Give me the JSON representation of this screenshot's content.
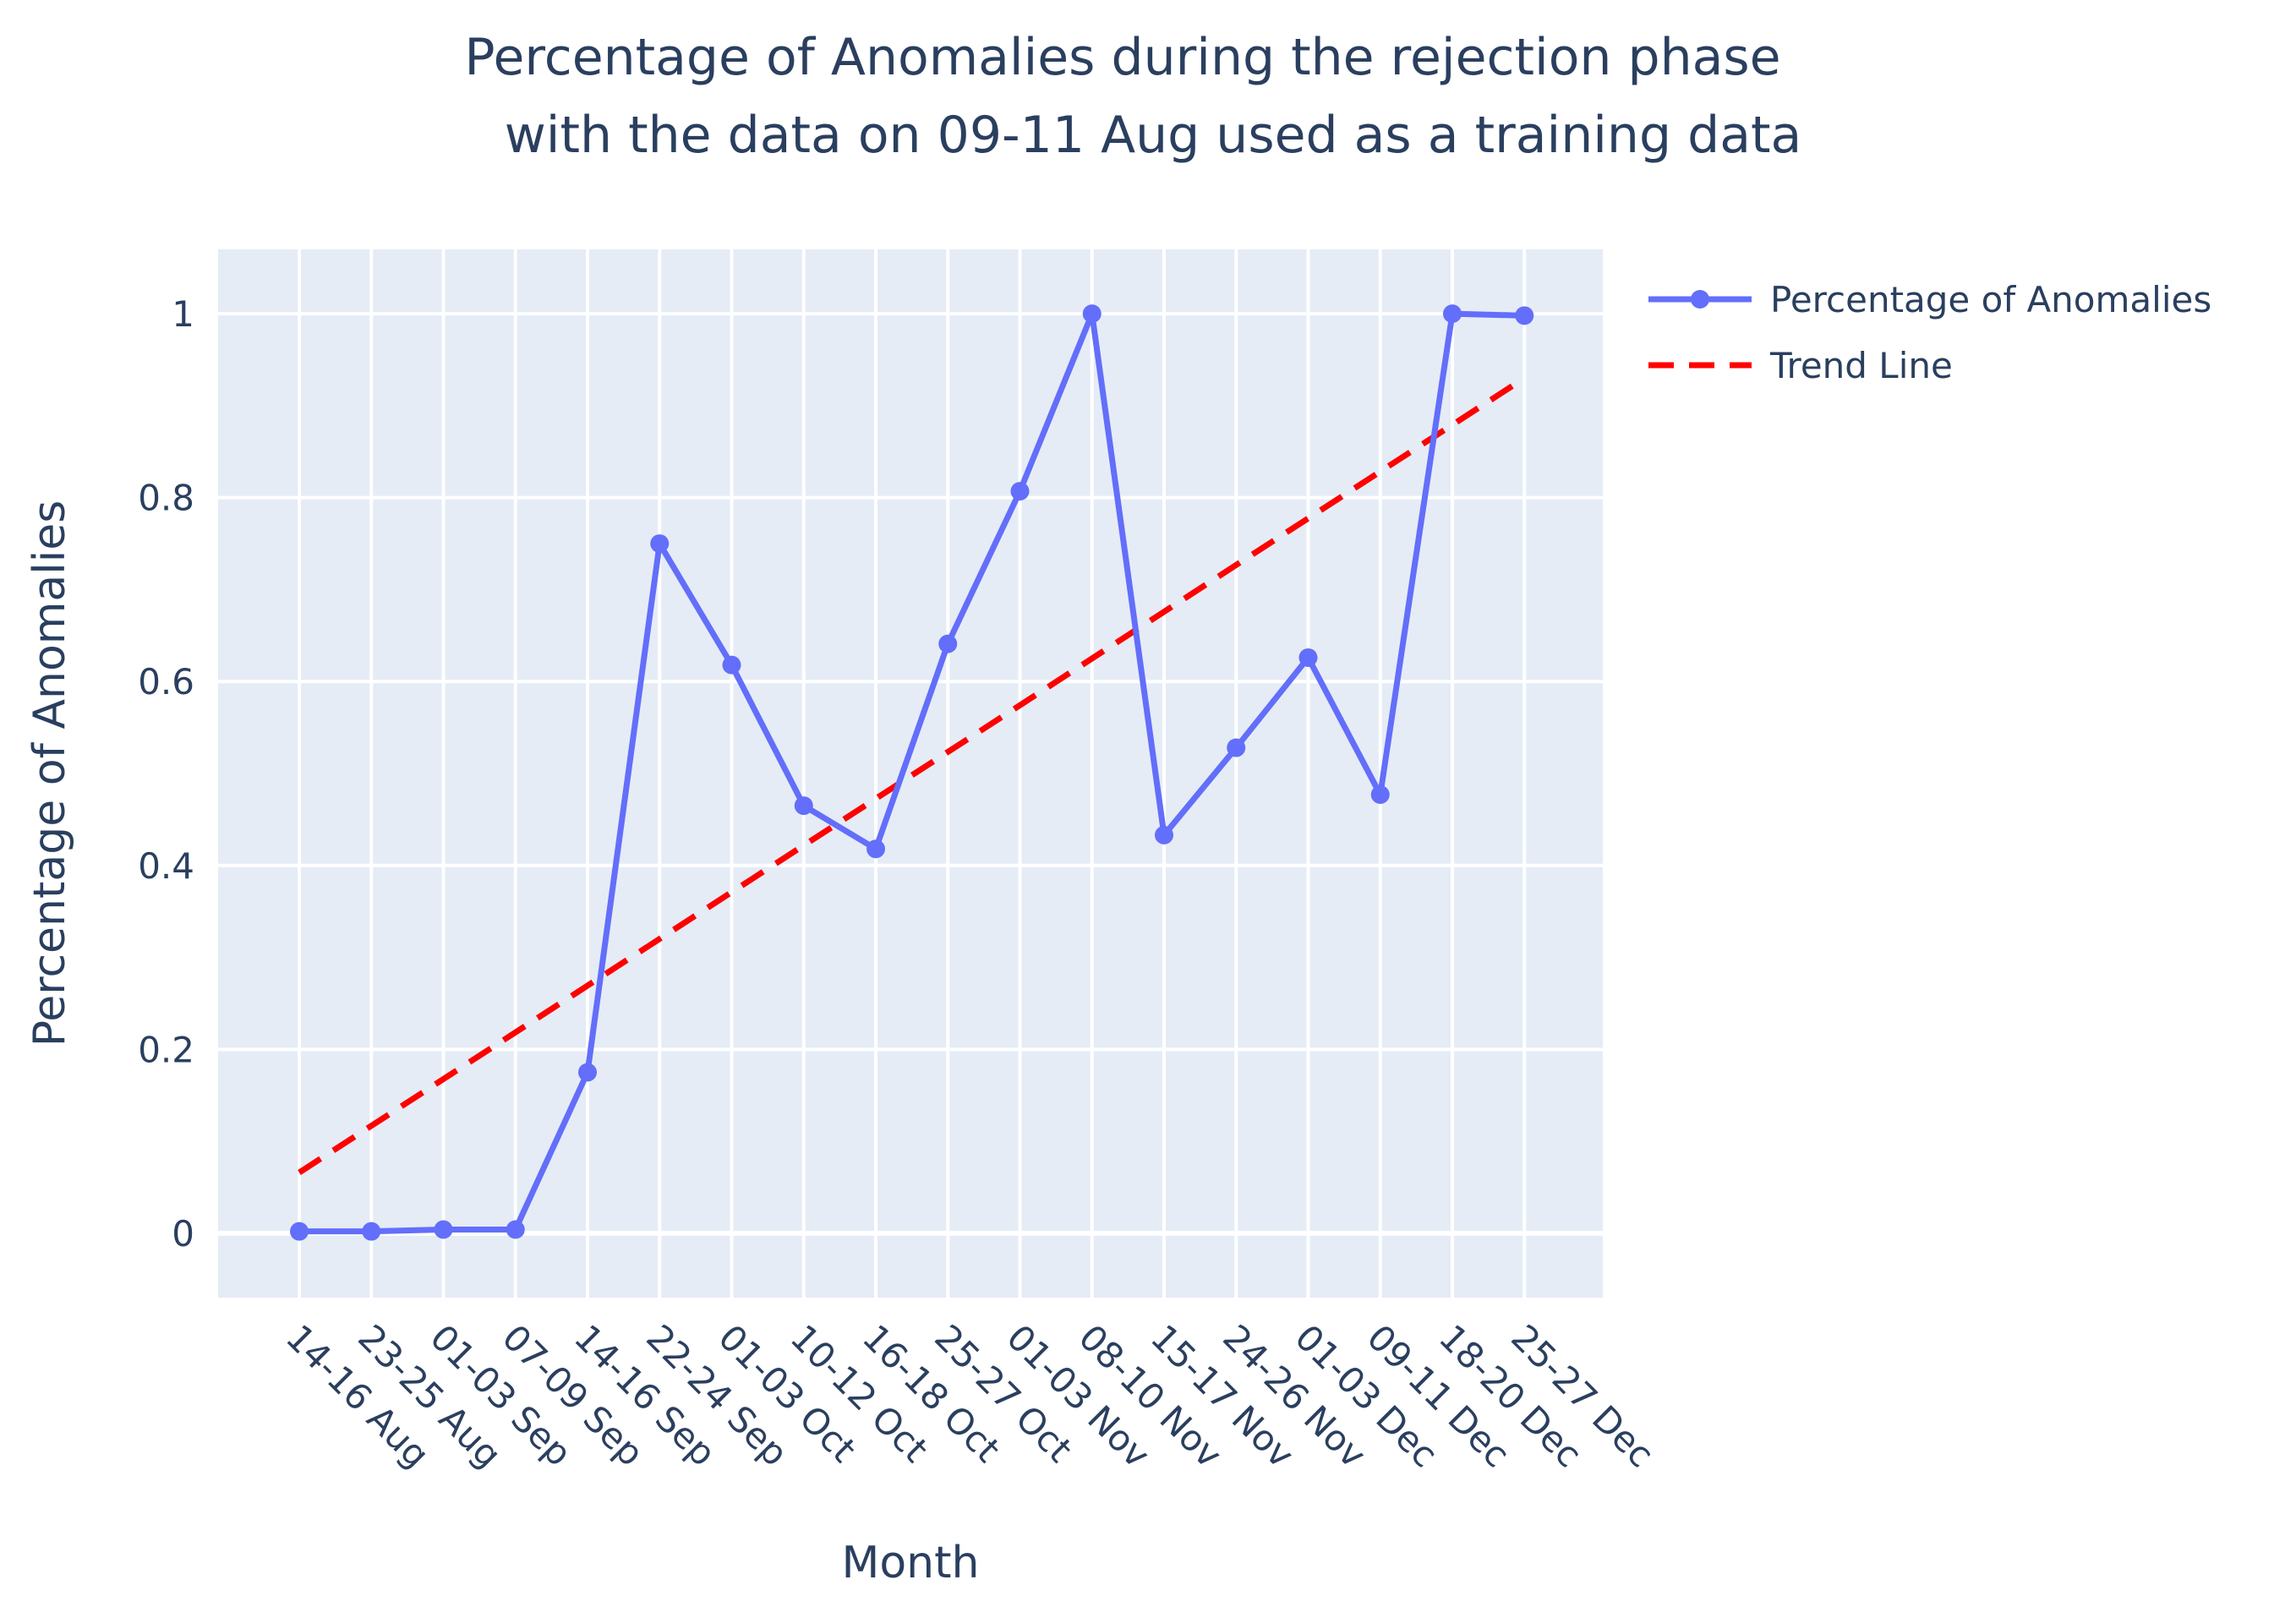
{
  "chart_data": {
    "type": "line",
    "title_lines": [
      "Percentage of Anomalies during the rejection phase",
      "with the data on 09-11 Aug used as a training data"
    ],
    "xlabel": "Month",
    "ylabel": "Percentage of Anomalies",
    "categories": [
      "14-16 Aug",
      "23-25 Aug",
      "01-03 Sep",
      "07-09 Sep",
      "14-16 Sep",
      "22-24 Sep",
      "01-03 Oct",
      "10-12 Oct",
      "16-18 Oct",
      "25-27 Oct",
      "01-03 Nov",
      "08-10 Nov",
      "15-17 Nov",
      "24-26 Nov",
      "01-03 Dec",
      "09-11 Dec",
      "18-20 Dec",
      "25-27 Dec"
    ],
    "ylim": [
      -0.07,
      1.07
    ],
    "yticks": [
      0,
      0.2,
      0.4,
      0.6,
      0.8,
      1
    ],
    "ytick_labels": [
      "0",
      "0.2",
      "0.4",
      "0.6",
      "0.8",
      "1"
    ],
    "grid": true,
    "series": [
      {
        "name": "Percentage of Anomalies",
        "style": "lines+markers",
        "color": "#636efa",
        "values": [
          0.002,
          0.002,
          0.004,
          0.004,
          0.175,
          0.75,
          0.618,
          0.465,
          0.418,
          0.641,
          0.807,
          1.0,
          0.433,
          0.528,
          0.626,
          0.477,
          1.0,
          0.998
        ]
      },
      {
        "name": "Trend Line",
        "style": "dash",
        "color": "#ff0000",
        "values": [
          0.066,
          0.117,
          0.168,
          0.219,
          0.27,
          0.32,
          0.371,
          0.422,
          0.473,
          0.524,
          0.575,
          0.625,
          0.676,
          0.727,
          0.778,
          0.829,
          0.88,
          0.93
        ]
      }
    ],
    "legend_position": "top-right",
    "colors": {
      "plot_bg": "#e5ecf6",
      "grid": "#ffffff",
      "text": "#2a3f5f"
    }
  }
}
